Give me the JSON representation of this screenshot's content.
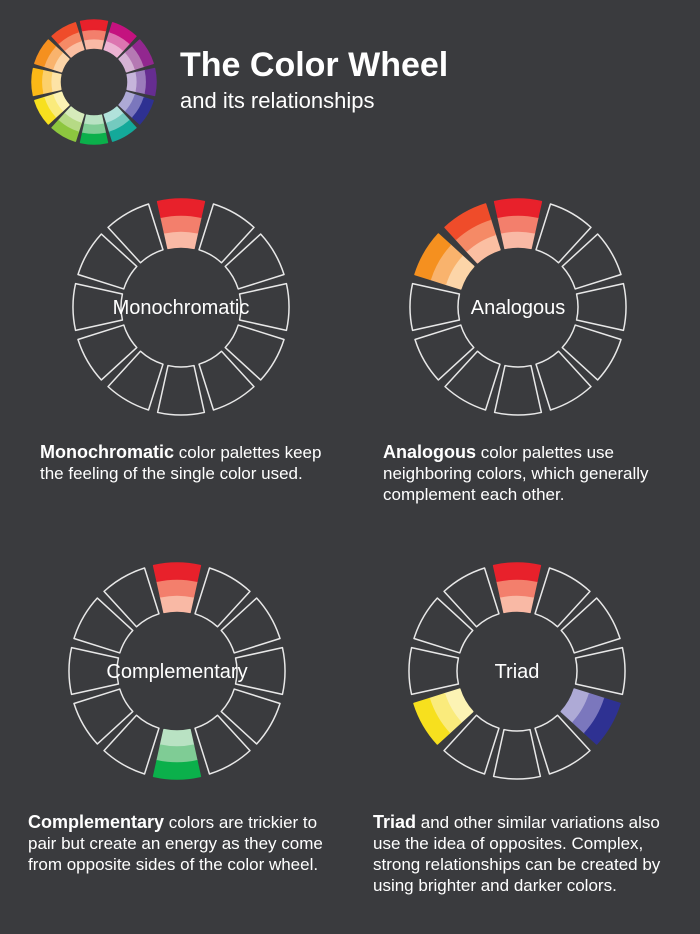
{
  "header": {
    "title": "The Color Wheel",
    "subtitle": "and its relationships"
  },
  "panels": [
    {
      "label": "Monochromatic",
      "heading": "Monochromatic",
      "text": "color palettes keep the feeling of the single color used."
    },
    {
      "label": "Analogous",
      "heading": "Analogous",
      "text": "color palettes use neighboring colors, which generally complement each other."
    },
    {
      "label": "Complementary",
      "heading": "Complementary",
      "text": "colors are trickier to pair but create an energy as they come from opposite sides of the color wheel."
    },
    {
      "label": "Triad",
      "heading": "Triad",
      "text": "and other similar variations also use the idea of opposites. Complex, strong relationships can be created by using brighter and darker colors."
    }
  ]
}
